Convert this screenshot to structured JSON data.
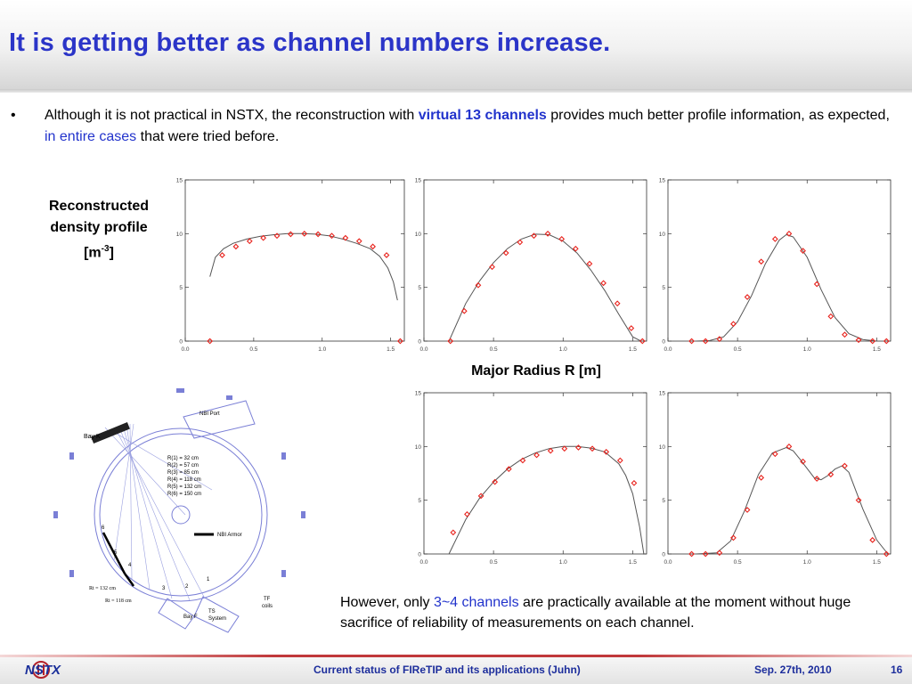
{
  "slide": {
    "title": "It is getting better as channel numbers increase.",
    "bullet": {
      "symbol": "•",
      "text_1": "Although it is not practical in NSTX, the reconstruction with ",
      "highlight_1": "virtual 13 channels",
      "text_2": " provides much better profile information, as expected, ",
      "highlight_2": "in entire cases",
      "text_3": " that were tried before."
    },
    "y_label_lines": [
      "Reconstructed",
      "density profile"
    ],
    "y_label_unit_open": "[m",
    "y_label_unit_exp": "-3",
    "y_label_unit_close": "]",
    "x_label": "Major Radius R [m]",
    "note": {
      "text_1": "However, only ",
      "highlight": "3~4 channels",
      "text_2": " are practically available at the moment without huge sacrifice of reliability of measurements on each channel."
    },
    "colors": {
      "title": "#2b35c8",
      "highlight": "#2233cc",
      "curve": "#555555",
      "marker": "#e8221c",
      "footer_rule": "#c0383a",
      "footer_text": "#1d2e9c"
    }
  },
  "diagram": {
    "labels": {
      "nbi_port": "NBI Port",
      "bay_k": "Bay K",
      "nbi_armor": "NBI Armor",
      "bay_f": "Bay F",
      "ts_system_1": "TS",
      "ts_system_2": "System",
      "tf_coils_1": "TF",
      "tf_coils_2": "coils",
      "rt": "Rt = 132 cm",
      "ri": "Ri = 118 cm"
    },
    "radii": [
      "R(1) = 32 cm",
      "R(2) = 57 cm",
      "R(3) = 85 cm",
      "R(4) = 118 cm",
      "R(5) = 132 cm",
      "R(6) = 150 cm"
    ],
    "chord_numbers": [
      "1",
      "2",
      "3",
      "4",
      "5",
      "6"
    ]
  },
  "footer": {
    "logo_text": "NSTX",
    "center": "Current status of FIReTIP and its applications (Juhn)",
    "date": "Sep. 27th, 2010",
    "page": "16"
  },
  "chart_data": [
    {
      "type": "line",
      "panel": "top-left",
      "xlim": [
        0.0,
        1.6
      ],
      "ylim": [
        0,
        15
      ],
      "x_ticks": [
        "0.0",
        "0.5",
        "1.0",
        "1.5"
      ],
      "y_ticks": [
        "0",
        "5",
        "10",
        "15"
      ],
      "curve": {
        "x": [
          0.18,
          0.22,
          0.28,
          0.35,
          0.45,
          0.55,
          0.65,
          0.75,
          0.85,
          0.95,
          1.05,
          1.15,
          1.25,
          1.35,
          1.42,
          1.48,
          1.52,
          1.55
        ],
        "y": [
          6.0,
          7.8,
          8.6,
          9.1,
          9.5,
          9.75,
          9.9,
          10.0,
          10.0,
          9.95,
          9.8,
          9.5,
          9.1,
          8.6,
          7.9,
          6.8,
          5.5,
          3.8
        ]
      },
      "markers": {
        "x": [
          0.18,
          0.27,
          0.37,
          0.47,
          0.57,
          0.67,
          0.77,
          0.87,
          0.97,
          1.07,
          1.17,
          1.27,
          1.37,
          1.47,
          1.57
        ],
        "y": [
          0.0,
          8.0,
          8.8,
          9.3,
          9.6,
          9.8,
          9.95,
          10.0,
          9.95,
          9.8,
          9.6,
          9.3,
          8.8,
          8.0,
          0.0
        ]
      }
    },
    {
      "type": "line",
      "panel": "top-middle",
      "xlim": [
        0.0,
        1.6
      ],
      "ylim": [
        0,
        15
      ],
      "x_ticks": [
        "0.0",
        "0.5",
        "1.0",
        "1.5"
      ],
      "y_ticks": [
        "0",
        "5",
        "10",
        "15"
      ],
      "curve": {
        "x": [
          0.18,
          0.3,
          0.4,
          0.5,
          0.6,
          0.7,
          0.8,
          0.9,
          1.0,
          1.1,
          1.2,
          1.3,
          1.4,
          1.5,
          1.56
        ],
        "y": [
          0.0,
          3.5,
          5.6,
          7.3,
          8.6,
          9.5,
          9.95,
          9.9,
          9.3,
          8.2,
          6.6,
          4.7,
          2.5,
          0.4,
          0.0
        ]
      },
      "markers": {
        "x": [
          0.19,
          0.29,
          0.39,
          0.49,
          0.59,
          0.69,
          0.79,
          0.89,
          0.99,
          1.09,
          1.19,
          1.29,
          1.39,
          1.49,
          1.57
        ],
        "y": [
          0.0,
          2.8,
          5.2,
          6.9,
          8.2,
          9.2,
          9.8,
          10.0,
          9.5,
          8.6,
          7.2,
          5.4,
          3.5,
          1.2,
          0.0
        ]
      }
    },
    {
      "type": "line",
      "panel": "top-right",
      "xlim": [
        0.0,
        1.6
      ],
      "ylim": [
        0,
        15
      ],
      "x_ticks": [
        "0.0",
        "0.5",
        "1.0",
        "1.5"
      ],
      "y_ticks": [
        "0",
        "5",
        "10",
        "15"
      ],
      "curve": {
        "x": [
          0.2,
          0.3,
          0.4,
          0.5,
          0.6,
          0.7,
          0.8,
          0.85,
          0.9,
          1.0,
          1.1,
          1.2,
          1.3,
          1.4,
          1.5,
          1.58
        ],
        "y": [
          0.0,
          0.05,
          0.4,
          1.8,
          4.2,
          7.2,
          9.4,
          9.9,
          9.7,
          7.8,
          4.8,
          2.2,
          0.7,
          0.15,
          0.0,
          0.0
        ]
      },
      "markers": {
        "x": [
          0.17,
          0.27,
          0.37,
          0.47,
          0.57,
          0.67,
          0.77,
          0.87,
          0.97,
          1.07,
          1.17,
          1.27,
          1.37,
          1.47,
          1.57
        ],
        "y": [
          0.0,
          0.0,
          0.2,
          1.6,
          4.1,
          7.4,
          9.5,
          10.0,
          8.4,
          5.3,
          2.3,
          0.6,
          0.1,
          0.0,
          0.0
        ]
      }
    },
    {
      "type": "line",
      "panel": "bottom-middle",
      "xlim": [
        0.0,
        1.6
      ],
      "ylim": [
        0,
        15
      ],
      "x_ticks": [
        "0.0",
        "0.5",
        "1.0",
        "1.5"
      ],
      "y_ticks": [
        "0",
        "5",
        "10",
        "15"
      ],
      "curve": {
        "x": [
          0.18,
          0.3,
          0.4,
          0.5,
          0.6,
          0.7,
          0.8,
          0.9,
          1.0,
          1.1,
          1.2,
          1.3,
          1.4,
          1.45,
          1.5,
          1.55,
          1.58
        ],
        "y": [
          0.0,
          3.2,
          5.2,
          6.7,
          7.9,
          8.8,
          9.4,
          9.8,
          10.0,
          10.0,
          9.85,
          9.5,
          8.4,
          7.3,
          5.6,
          2.5,
          0.0
        ]
      },
      "markers": {
        "x": [
          0.21,
          0.31,
          0.41,
          0.51,
          0.61,
          0.71,
          0.81,
          0.91,
          1.01,
          1.11,
          1.21,
          1.31,
          1.41,
          1.51
        ],
        "y": [
          2.0,
          3.7,
          5.4,
          6.7,
          7.9,
          8.7,
          9.2,
          9.6,
          9.8,
          9.9,
          9.8,
          9.5,
          8.7,
          6.6
        ]
      }
    },
    {
      "type": "line",
      "panel": "bottom-right",
      "xlim": [
        0.0,
        1.6
      ],
      "ylim": [
        0,
        15
      ],
      "x_ticks": [
        "0.0",
        "0.5",
        "1.0",
        "1.5"
      ],
      "y_ticks": [
        "0",
        "5",
        "10",
        "15"
      ],
      "curve": {
        "x": [
          0.2,
          0.35,
          0.45,
          0.55,
          0.65,
          0.75,
          0.85,
          0.9,
          0.95,
          1.05,
          1.1,
          1.15,
          1.2,
          1.25,
          1.3,
          1.4,
          1.5,
          1.58
        ],
        "y": [
          0.0,
          0.1,
          1.2,
          4.0,
          7.4,
          9.4,
          9.9,
          9.6,
          8.8,
          7.1,
          6.9,
          7.3,
          7.9,
          8.2,
          7.6,
          4.2,
          1.3,
          0.0
        ]
      },
      "markers": {
        "x": [
          0.17,
          0.27,
          0.37,
          0.47,
          0.57,
          0.67,
          0.77,
          0.87,
          0.97,
          1.07,
          1.17,
          1.27,
          1.37,
          1.47,
          1.57
        ],
        "y": [
          0.0,
          0.0,
          0.1,
          1.5,
          4.1,
          7.1,
          9.3,
          10.0,
          8.6,
          7.0,
          7.4,
          8.2,
          5.0,
          1.3,
          0.0
        ]
      }
    }
  ]
}
